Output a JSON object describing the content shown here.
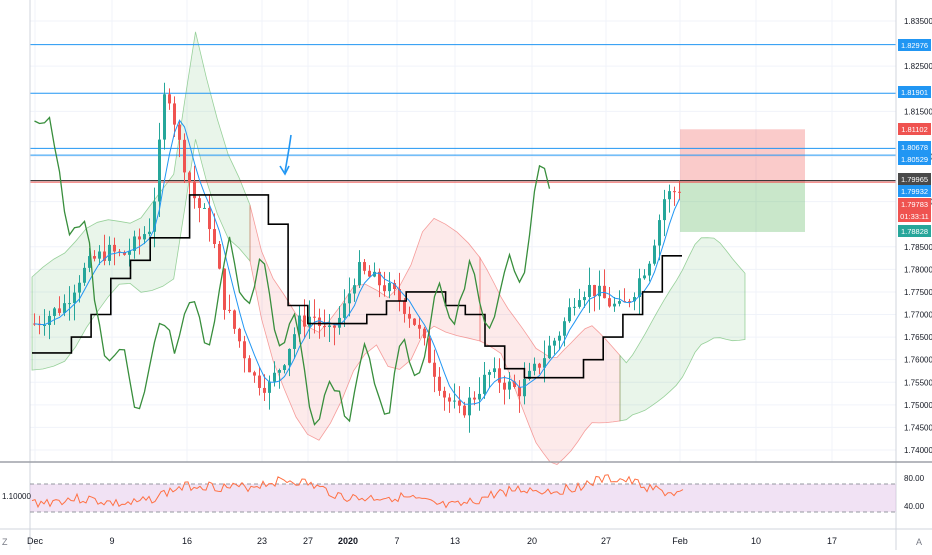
{
  "price_axis": {
    "ticks": [
      "1.83500",
      "1.82500",
      "1.81500",
      "1.80500",
      "1.79500",
      "1.78500",
      "1.78000",
      "1.77500",
      "1.77000",
      "1.76500",
      "1.76000",
      "1.75500",
      "1.75000",
      "1.74500",
      "1.74000"
    ],
    "tags": [
      {
        "label": "1.82976",
        "color": "#2196f3"
      },
      {
        "label": "1.81901",
        "color": "#2196f3"
      },
      {
        "label": "1.81102",
        "color": "#ef5350"
      },
      {
        "label": "1.80678",
        "color": "#2196f3"
      },
      {
        "label": "1.80529",
        "color": "#2196f3"
      },
      {
        "label": "1.79965",
        "color": "#4a4a4a"
      },
      {
        "label": "1.79932",
        "color": "#2196f3"
      },
      {
        "label": "1.79783",
        "color": "#ef5350"
      },
      {
        "label": "01:33:11",
        "color": "#ef5350"
      },
      {
        "label": "1.78828",
        "color": "#26a69a"
      }
    ]
  },
  "time_axis": {
    "labels": [
      "Dec",
      "9",
      "16",
      "23",
      "27",
      "2020",
      "7",
      "13",
      "20",
      "27",
      "Feb",
      "10",
      "17"
    ]
  },
  "rsi_pane": {
    "ticks": [
      "80.00",
      "40.00"
    ],
    "left_value": "1.10000"
  },
  "corner": {
    "left": "Z",
    "right": "A"
  },
  "colors": {
    "up": "#26a69a",
    "down": "#ef5350",
    "kumo_bull": "#4caf50",
    "kumo_bear": "#ef5350",
    "chikou": "#388e3c",
    "kijun": "#000000",
    "tenkan": "#2196f3",
    "rsi": "#ff7043",
    "rsi_band": "#e1bee7"
  },
  "chart_data": {
    "type": "candlestick",
    "instrument_timeframe": "",
    "series": [
      {
        "name": "price",
        "values": [
          1.768,
          1.77,
          1.772,
          1.778,
          1.782,
          1.784,
          1.783,
          1.786,
          1.79,
          1.822,
          1.806,
          1.795,
          1.79,
          1.772,
          1.764,
          1.756,
          1.754,
          1.76,
          1.768,
          1.77,
          1.765,
          1.77,
          1.78,
          1.778,
          1.776,
          1.773,
          1.768,
          1.76,
          1.752,
          1.748,
          1.752,
          1.757,
          1.755,
          1.753,
          1.757,
          1.762,
          1.767,
          1.775,
          1.776,
          1.773,
          1.771,
          1.776,
          1.783,
          1.796,
          1.798
        ]
      },
      {
        "name": "kijun",
        "values": [
          1.7615,
          1.7615,
          1.765,
          1.77,
          1.778,
          1.782,
          1.787,
          1.787,
          1.7965,
          1.7965,
          1.7965,
          1.7965,
          1.79,
          1.772,
          1.768,
          1.768,
          1.768,
          1.77,
          1.773,
          1.775,
          1.775,
          1.772,
          1.77,
          1.763,
          1.758,
          1.756,
          1.756,
          1.756,
          1.76,
          1.765,
          1.77,
          1.775,
          1.783
        ]
      }
    ],
    "horizontal_levels": [
      1.82976,
      1.81901,
      1.80678,
      1.80529,
      1.79965,
      1.79932
    ],
    "long_position": {
      "entry": 1.79932,
      "stop": 1.81102,
      "target": 1.78828
    },
    "ylim": [
      1.737,
      1.837
    ]
  }
}
